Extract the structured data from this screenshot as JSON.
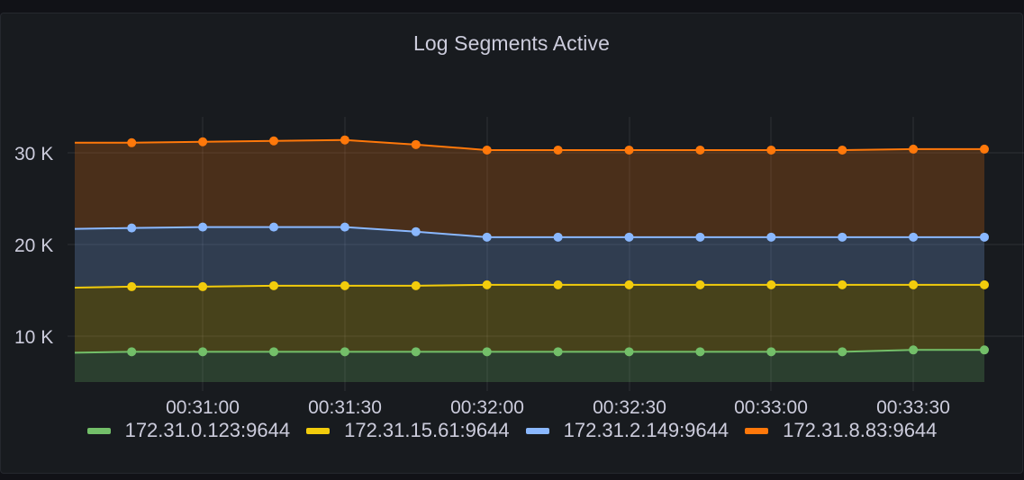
{
  "panel": {
    "title": "Log Segments Active"
  },
  "chart_data": {
    "type": "area",
    "stacked": true,
    "title": "Log Segments Active",
    "xlabel": "",
    "ylabel": "",
    "ylim": [
      5000,
      35000
    ],
    "yticks": [
      {
        "value": 10000,
        "label": "10 K"
      },
      {
        "value": 20000,
        "label": "20 K"
      },
      {
        "value": 30000,
        "label": "30 K"
      }
    ],
    "xticks": [
      "00:31:00",
      "00:31:30",
      "00:32:00",
      "00:32:30",
      "00:33:00",
      "00:33:30"
    ],
    "x": [
      "00:30:33",
      "00:30:45",
      "00:31:00",
      "00:31:15",
      "00:31:30",
      "00:31:45",
      "00:32:00",
      "00:32:15",
      "00:32:30",
      "00:32:45",
      "00:33:00",
      "00:33:15",
      "00:33:30",
      "00:33:45"
    ],
    "grid": true,
    "legend_position": "bottom",
    "series": [
      {
        "name": "172.31.0.123:9644",
        "color": "#73bf69",
        "values": [
          8200,
          8300,
          8300,
          8300,
          8300,
          8300,
          8300,
          8300,
          8300,
          8300,
          8300,
          8300,
          8500,
          8500
        ],
        "stacked_top": [
          8200,
          8300,
          8300,
          8300,
          8300,
          8300,
          8300,
          8300,
          8300,
          8300,
          8300,
          8300,
          8500,
          8500
        ]
      },
      {
        "name": "172.31.15.61:9644",
        "color": "#f2cc0c",
        "values": [
          7100,
          7100,
          7100,
          7200,
          7200,
          7200,
          7300,
          7300,
          7300,
          7300,
          7300,
          7300,
          7100,
          7100
        ],
        "stacked_top": [
          15300,
          15400,
          15400,
          15500,
          15500,
          15500,
          15600,
          15600,
          15600,
          15600,
          15600,
          15600,
          15600,
          15600
        ]
      },
      {
        "name": "172.31.2.149:9644",
        "color": "#8ab8ff",
        "values": [
          6400,
          6400,
          6500,
          6400,
          6400,
          5900,
          5200,
          5200,
          5200,
          5200,
          5200,
          5200,
          5200,
          5200
        ],
        "stacked_top": [
          21700,
          21800,
          21900,
          21900,
          21900,
          21400,
          20800,
          20800,
          20800,
          20800,
          20800,
          20800,
          20800,
          20800
        ]
      },
      {
        "name": "172.31.8.83:9644",
        "color": "#ff780a",
        "values": [
          9400,
          9300,
          9300,
          9400,
          9500,
          9500,
          9500,
          9500,
          9500,
          9500,
          9500,
          9500,
          9600,
          9600
        ],
        "stacked_top": [
          31100,
          31100,
          31200,
          31300,
          31400,
          30900,
          30300,
          30300,
          30300,
          30300,
          30300,
          30300,
          30400,
          30400
        ]
      }
    ]
  },
  "legend": {
    "items": [
      {
        "label": "172.31.0.123:9644",
        "color": "#73bf69"
      },
      {
        "label": "172.31.15.61:9644",
        "color": "#f2cc0c"
      },
      {
        "label": "172.31.2.149:9644",
        "color": "#8ab8ff"
      },
      {
        "label": "172.31.8.83:9644",
        "color": "#ff780a"
      }
    ]
  }
}
